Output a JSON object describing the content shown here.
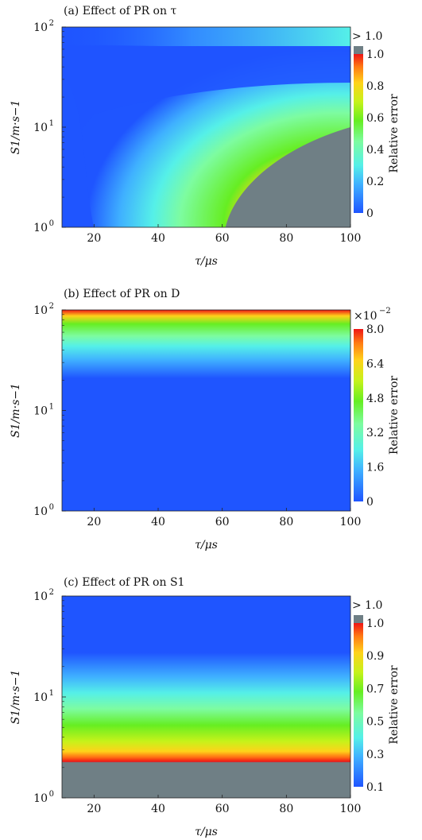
{
  "chart_data": [
    {
      "type": "heatmap",
      "title": "(a) Effect of PR on τ",
      "xlabel": "τ/μs",
      "ylabel": "S1/m·s−1",
      "xlim": [
        10,
        100
      ],
      "ylim": [
        1,
        100
      ],
      "y_scale": "log",
      "xticks": [
        "20",
        "40",
        "60",
        "80",
        "100"
      ],
      "yticks": [
        "10",
        "10",
        "10"
      ],
      "ytick_exponents": [
        "0",
        "1",
        "2"
      ],
      "colorbar": {
        "label": "Relative error",
        "ticks": [
          "0",
          "0.2",
          "0.4",
          "0.6",
          "0.8",
          "1.0"
        ],
        "top_label": "> 1.0",
        "range": [
          0,
          1.0
        ],
        "overflow_color": "#6f7f85"
      }
    },
    {
      "type": "heatmap",
      "title": "(b) Effect of PR on D",
      "xlabel": "τ/μs",
      "ylabel": "S1/m·s−1",
      "xlim": [
        10,
        100
      ],
      "ylim": [
        1,
        100
      ],
      "y_scale": "log",
      "xticks": [
        "20",
        "40",
        "60",
        "80",
        "100"
      ],
      "yticks": [
        "10",
        "10",
        "10"
      ],
      "ytick_exponents": [
        "0",
        "1",
        "2"
      ],
      "colorbar": {
        "label": "Relative error",
        "ticks": [
          "0",
          "1.6",
          "3.2",
          "4.8",
          "6.4",
          "8.0"
        ],
        "multiplier": "×10",
        "multiplier_exp": "−2",
        "range": [
          0,
          8.0
        ]
      }
    },
    {
      "type": "heatmap",
      "title": "(c) Effect of PR on S1",
      "xlabel": "τ/μs",
      "ylabel": "S1/m·s−1",
      "xlim": [
        10,
        100
      ],
      "ylim": [
        1,
        100
      ],
      "y_scale": "log",
      "xticks": [
        "20",
        "40",
        "60",
        "80",
        "100"
      ],
      "yticks": [
        "10",
        "10",
        "10"
      ],
      "ytick_exponents": [
        "0",
        "1",
        "2"
      ],
      "colorbar": {
        "label": "Relative error",
        "ticks": [
          "0.1",
          "0.3",
          "0.5",
          "0.7",
          "0.9",
          "1.0"
        ],
        "top_label": "> 1.0",
        "range": [
          0.1,
          1.0
        ],
        "overflow_color": "#6f7f85"
      }
    }
  ]
}
